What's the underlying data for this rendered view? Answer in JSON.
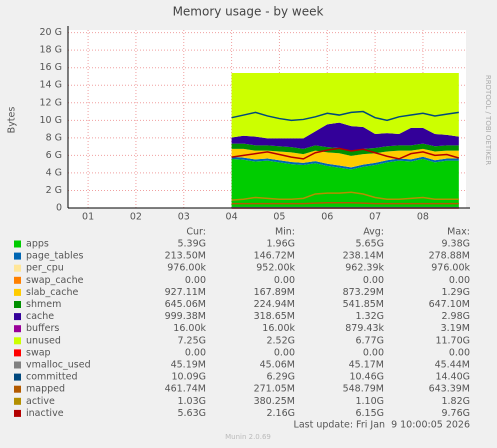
{
  "chart_data": {
    "type": "area",
    "title": "Memory usage - by week",
    "y_label": "Bytes",
    "side_text": "RRDTOOL / TOBI OETIKER",
    "x": [
      4,
      4.25,
      4.5,
      4.75,
      5,
      5.25,
      5.5,
      5.75,
      6,
      6.25,
      6.5,
      6.75,
      7,
      7.25,
      7.5,
      7.75,
      8,
      8.25,
      8.5,
      8.75
    ],
    "xlim": [
      0.58,
      8.9
    ],
    "xticks": [
      {
        "value": 1,
        "label": "01"
      },
      {
        "value": 2,
        "label": "02"
      },
      {
        "value": 3,
        "label": "03"
      },
      {
        "value": 4,
        "label": "04"
      },
      {
        "value": 5,
        "label": "05"
      },
      {
        "value": 6,
        "label": "06"
      },
      {
        "value": 7,
        "label": "07"
      },
      {
        "value": 8,
        "label": "08"
      }
    ],
    "ylim": [
      0,
      20.3
    ],
    "yticks": [
      0,
      {
        "value": 2,
        "label": "2 G"
      },
      {
        "value": 4,
        "label": "4 G"
      },
      {
        "value": 6,
        "label": "6 G"
      },
      {
        "value": 8,
        "label": "8 G"
      },
      {
        "value": 10,
        "label": "10 G"
      },
      {
        "value": 12,
        "label": "12 G"
      },
      {
        "value": 14,
        "label": "14 G"
      },
      {
        "value": 16,
        "label": "16 G"
      },
      {
        "value": 18,
        "label": "18 G"
      },
      {
        "value": 20,
        "label": "20 G"
      }
    ],
    "grid": true,
    "stat_headers": [
      "Cur:",
      "Min:",
      "Avg:",
      "Max:"
    ],
    "series": [
      {
        "name": "apps",
        "color": "#00cc00",
        "kind": "area",
        "values": [
          5.6,
          5.5,
          5.3,
          5.4,
          5.2,
          5.0,
          4.9,
          5.1,
          4.8,
          4.6,
          4.4,
          4.7,
          4.9,
          5.2,
          5.4,
          5.3,
          5.6,
          5.2,
          5.4,
          5.4
        ],
        "stats": [
          "5.39G",
          "1.96G",
          "5.65G",
          "9.38G"
        ]
      },
      {
        "name": "page_tables",
        "color": "#0066b3",
        "kind": "area",
        "values": [
          0.24,
          0.24,
          0.24,
          0.24,
          0.24,
          0.24,
          0.24,
          0.24,
          0.24,
          0.24,
          0.24,
          0.24,
          0.24,
          0.24,
          0.24,
          0.24,
          0.24,
          0.24,
          0.24,
          0.24
        ],
        "stats": [
          "213.50M",
          "146.72M",
          "238.14M",
          "278.88M"
        ]
      },
      {
        "name": "per_cpu",
        "color": "#ffe699",
        "kind": "area",
        "values": [
          0.001,
          0.001,
          0.001,
          0.001,
          0.001,
          0.001,
          0.001,
          0.001,
          0.001,
          0.001,
          0.001,
          0.001,
          0.001,
          0.001,
          0.001,
          0.001,
          0.001,
          0.001,
          0.001,
          0.001
        ],
        "stats": [
          "976.00k",
          "952.00k",
          "962.39k",
          "976.00k"
        ]
      },
      {
        "name": "swap_cache",
        "color": "#ff8000",
        "kind": "area",
        "values": [
          0,
          0,
          0,
          0,
          0,
          0,
          0,
          0,
          0,
          0,
          0,
          0,
          0,
          0,
          0,
          0,
          0,
          0,
          0,
          0
        ],
        "stats": [
          "0.00",
          "0.00",
          "0.00",
          "0.00"
        ]
      },
      {
        "name": "slab_cache",
        "color": "#ffcc00",
        "kind": "area",
        "values": [
          0.9,
          1.0,
          1.0,
          0.9,
          1.0,
          1.1,
          1.0,
          1.2,
          1.3,
          1.4,
          1.3,
          1.2,
          1.1,
          1.0,
          0.9,
          1.0,
          0.9,
          1.0,
          0.9,
          0.9
        ],
        "stats": [
          "927.11M",
          "167.89M",
          "873.29M",
          "1.29G"
        ]
      },
      {
        "name": "shmem",
        "color": "#008f00",
        "kind": "area",
        "values": [
          0.6,
          0.6,
          0.6,
          0.6,
          0.6,
          0.6,
          0.6,
          0.6,
          0.6,
          0.6,
          0.6,
          0.6,
          0.6,
          0.6,
          0.6,
          0.6,
          0.6,
          0.6,
          0.6,
          0.6
        ],
        "stats": [
          "645.06M",
          "224.94M",
          "541.85M",
          "647.10M"
        ]
      },
      {
        "name": "cache",
        "color": "#330099",
        "kind": "area",
        "values": [
          0.7,
          0.9,
          1.0,
          0.8,
          0.9,
          1.0,
          1.2,
          1.6,
          2.6,
          2.9,
          2.8,
          2.5,
          1.6,
          1.5,
          1.3,
          2.0,
          1.8,
          1.4,
          1.2,
          1.0
        ],
        "stats": [
          "999.38M",
          "318.65M",
          "1.32G",
          "2.98G"
        ]
      },
      {
        "name": "buffers",
        "color": "#990099",
        "kind": "area",
        "values": [
          0.001,
          0.001,
          0.001,
          0.001,
          0.001,
          0.001,
          0.001,
          0.001,
          0.001,
          0.001,
          0.001,
          0.001,
          0.001,
          0.001,
          0.001,
          0.001,
          0.001,
          0.001,
          0.001,
          0.001
        ],
        "stats": [
          "16.00k",
          "16.00k",
          "879.43k",
          "3.19M"
        ]
      },
      {
        "name": "unused",
        "color": "#ccff00",
        "kind": "area",
        "values": [
          7.36,
          7.16,
          7.26,
          7.46,
          7.46,
          7.46,
          7.46,
          6.66,
          5.86,
          5.66,
          6.06,
          6.16,
          6.96,
          6.86,
          6.96,
          6.26,
          6.26,
          6.96,
          7.06,
          7.26
        ],
        "stats": [
          "7.25G",
          "2.52G",
          "6.77G",
          "11.70G"
        ]
      },
      {
        "name": "swap",
        "color": "#ff0000",
        "kind": "line",
        "values": [
          0,
          0,
          0,
          0,
          0,
          0,
          0,
          0,
          0,
          0,
          0,
          0,
          0,
          0,
          0,
          0,
          0,
          0,
          0,
          0
        ],
        "stats": [
          "0.00",
          "0.00",
          "0.00",
          "0.00"
        ]
      },
      {
        "name": "vmalloc_used",
        "color": "#808080",
        "kind": "line",
        "values": [
          0.045,
          0.045,
          0.045,
          0.045,
          0.045,
          0.045,
          0.045,
          0.045,
          0.045,
          0.045,
          0.045,
          0.045,
          0.045,
          0.045,
          0.045,
          0.045,
          0.045,
          0.045,
          0.045,
          0.045
        ],
        "stats": [
          "45.19M",
          "45.06M",
          "45.17M",
          "45.44M"
        ]
      },
      {
        "name": "committed",
        "color": "#00487d",
        "kind": "line",
        "values": [
          10.3,
          10.6,
          10.9,
          10.5,
          10.2,
          10.0,
          10.1,
          10.4,
          10.8,
          10.6,
          10.9,
          11.0,
          10.3,
          10.0,
          10.4,
          10.6,
          10.8,
          10.5,
          10.7,
          10.9
        ],
        "stats": [
          "10.09G",
          "6.29G",
          "10.46G",
          "14.40G"
        ]
      },
      {
        "name": "mapped",
        "color": "#b35a00",
        "kind": "line",
        "values": [
          0.5,
          0.5,
          0.5,
          0.5,
          0.5,
          0.5,
          0.5,
          0.55,
          0.6,
          0.6,
          0.6,
          0.55,
          0.5,
          0.5,
          0.5,
          0.5,
          0.5,
          0.5,
          0.5,
          0.5
        ],
        "stats": [
          "461.74M",
          "271.05M",
          "548.79M",
          "643.39M"
        ]
      },
      {
        "name": "active",
        "color": "#b38f00",
        "kind": "line",
        "values": [
          0.9,
          1.0,
          1.2,
          1.1,
          1.0,
          1.0,
          1.1,
          1.6,
          1.7,
          1.7,
          1.8,
          1.6,
          1.2,
          1.0,
          1.0,
          1.1,
          1.2,
          1.0,
          1.0,
          1.0
        ],
        "stats": [
          "1.03G",
          "380.25M",
          "1.10G",
          "1.82G"
        ]
      },
      {
        "name": "inactive",
        "color": "#b30000",
        "kind": "line",
        "values": [
          5.8,
          6.0,
          6.2,
          6.4,
          6.1,
          5.8,
          5.6,
          6.3,
          6.6,
          6.8,
          6.5,
          6.7,
          6.3,
          5.9,
          5.6,
          6.2,
          6.4,
          6.0,
          6.1,
          5.7
        ],
        "stats": [
          "5.63G",
          "2.16G",
          "6.15G",
          "9.76G"
        ]
      }
    ],
    "footer": "Last update: Fri Jan  9 10:00:05 2026",
    "credit": "Munin 2.0.69"
  }
}
